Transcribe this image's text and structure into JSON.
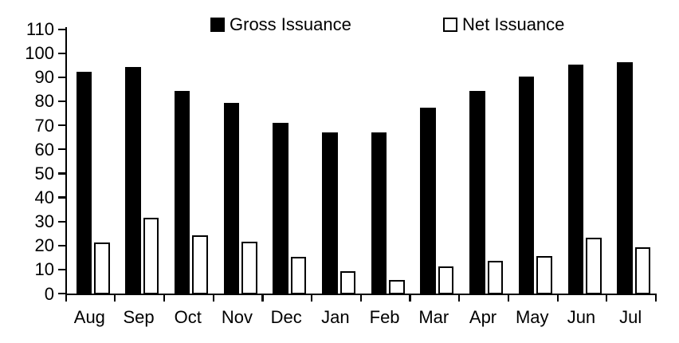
{
  "chart_data": {
    "type": "bar",
    "categories": [
      "Aug",
      "Sep",
      "Oct",
      "Nov",
      "Dec",
      "Jan",
      "Feb",
      "Mar",
      "Apr",
      "May",
      "Jun",
      "Jul"
    ],
    "series": [
      {
        "name": "Gross Issuance",
        "style": "filled-black",
        "values": [
          92,
          94,
          84,
          79,
          71,
          67,
          67,
          77,
          84,
          90,
          95,
          96
        ]
      },
      {
        "name": "Net Issuance",
        "style": "outlined-white",
        "values": [
          21,
          31.5,
          24,
          21.5,
          15,
          9,
          5.5,
          11,
          13.5,
          15.5,
          23,
          19
        ]
      }
    ],
    "title": "",
    "xlabel": "",
    "ylabel": "",
    "ylim": [
      0,
      110
    ],
    "ytick_step": 10,
    "ytick_labels": [
      "0",
      "10",
      "20",
      "30",
      "40",
      "50",
      "60",
      "70",
      "80",
      "90",
      "100",
      "110"
    ],
    "grid": false,
    "legend_position": "top",
    "colors": {
      "gross_fill": "#000000",
      "net_fill": "#ffffff",
      "net_border": "#000000",
      "axis": "#000000",
      "background": "#ffffff"
    }
  }
}
